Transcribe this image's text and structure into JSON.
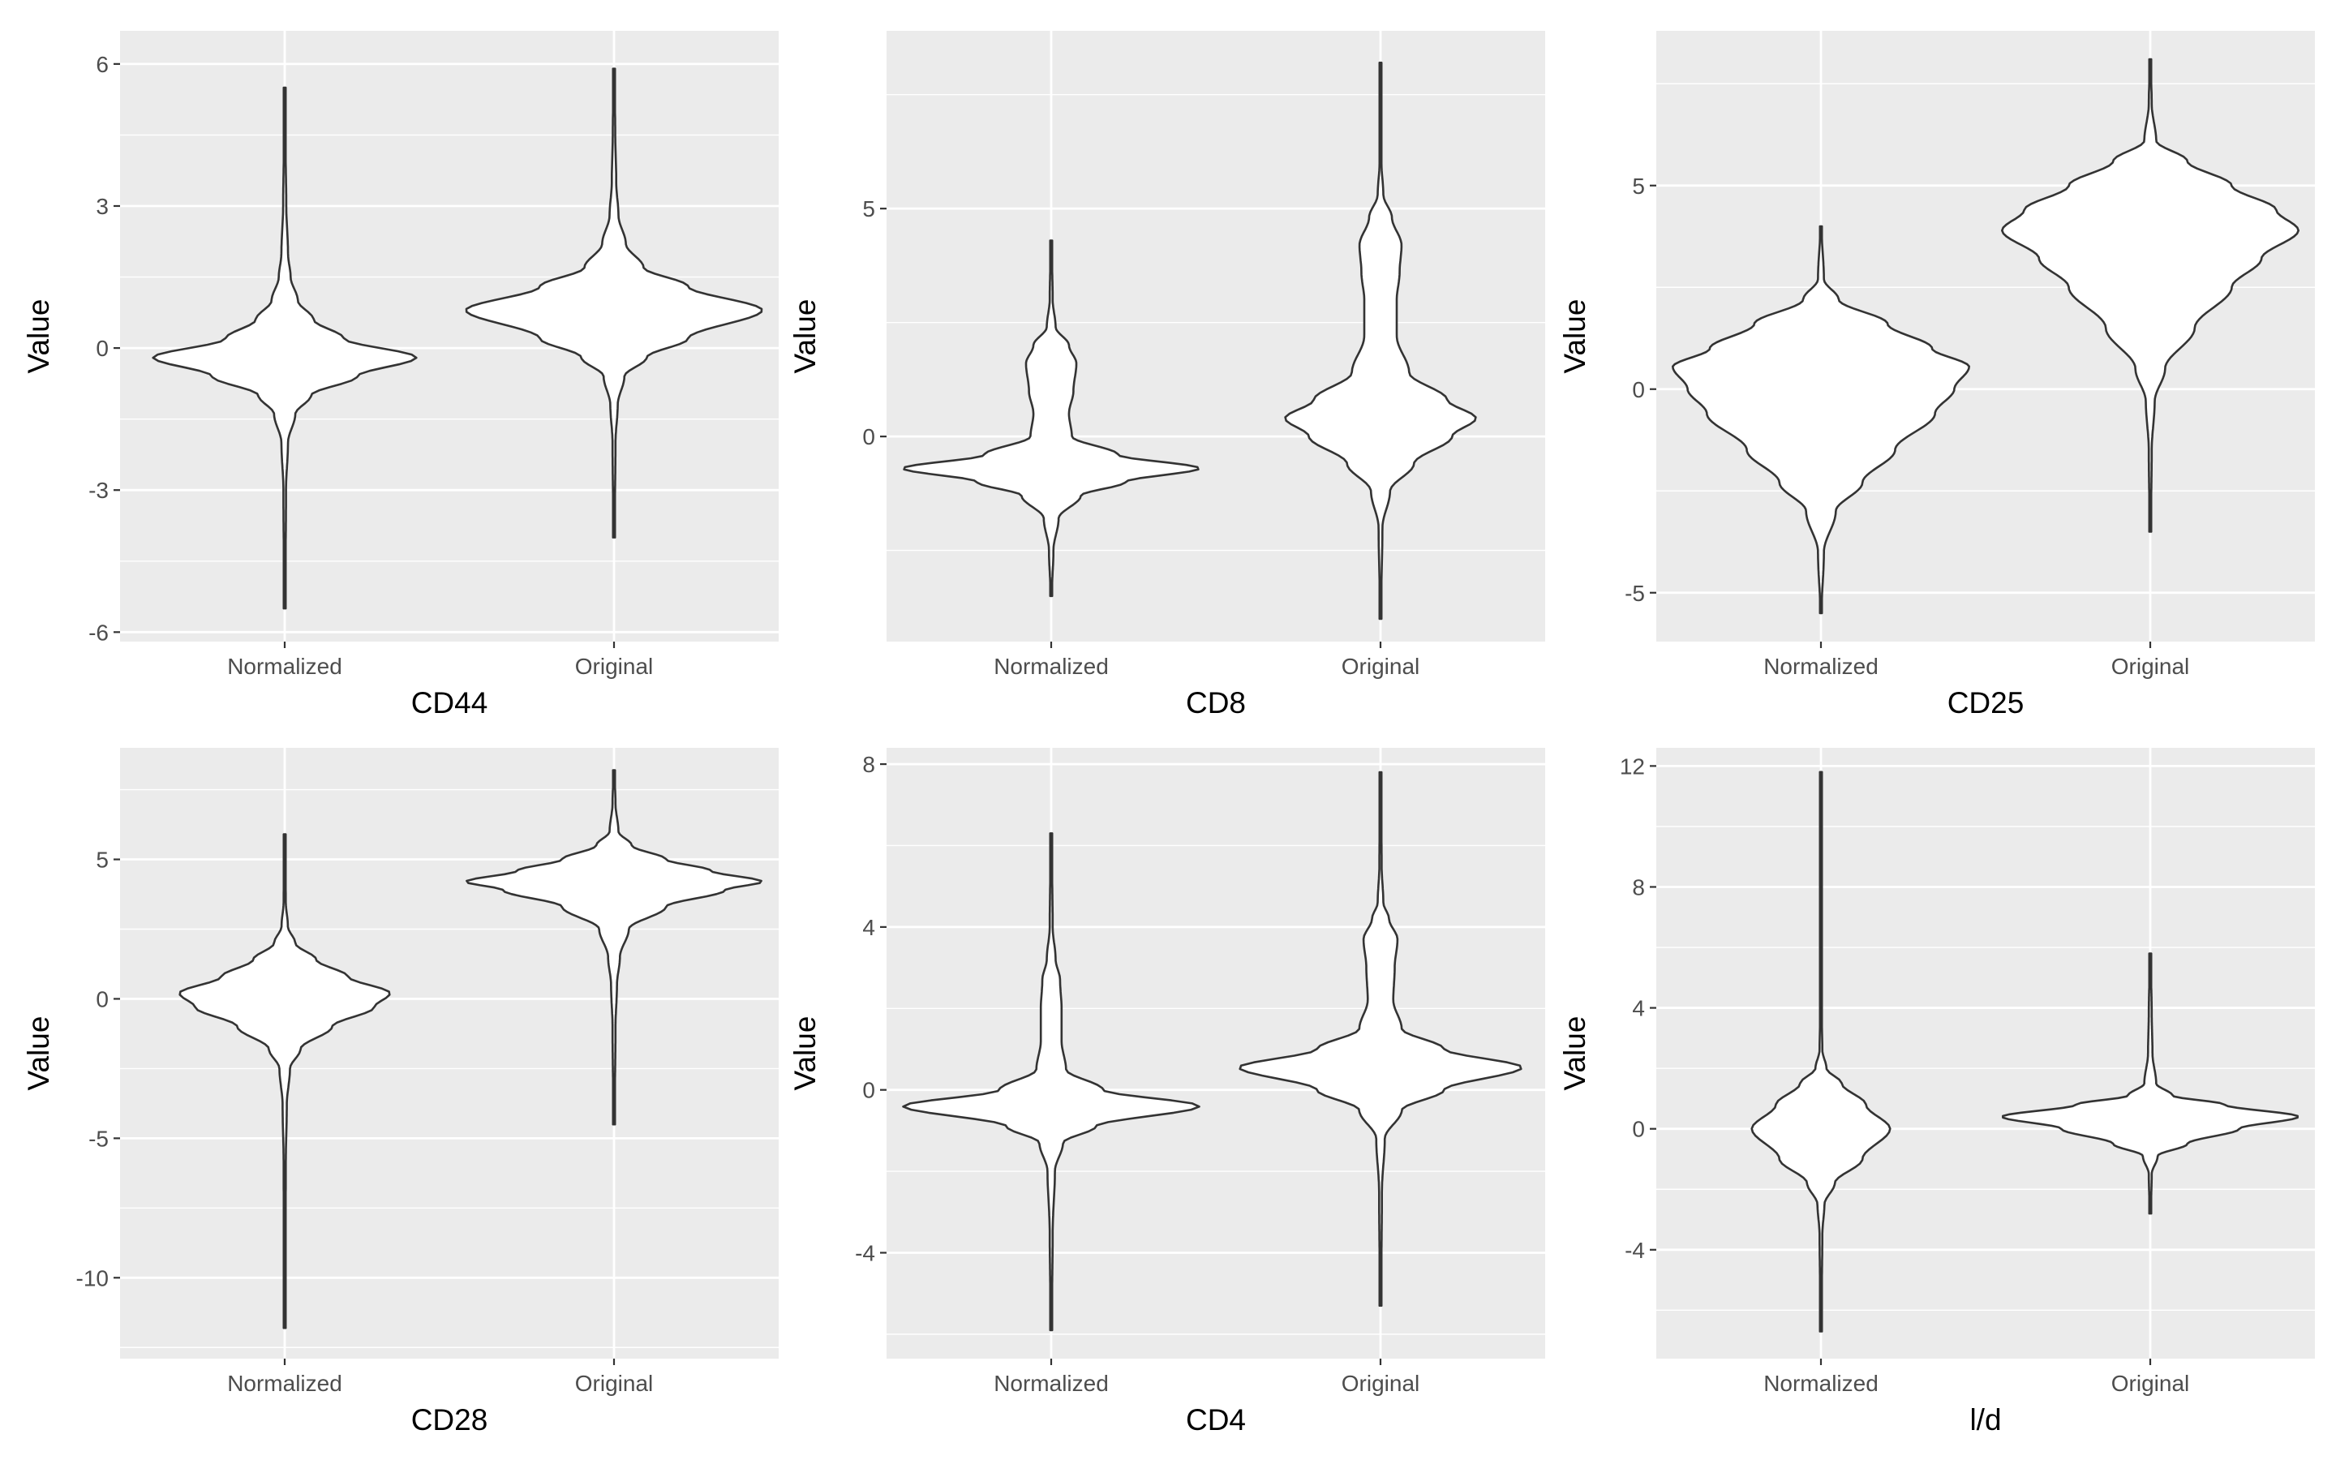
{
  "chart_data": [
    {
      "type": "violin",
      "xlabel": "CD44",
      "ylabel": "Value",
      "categories": [
        "Normalized",
        "Original"
      ],
      "ylim": [
        -6.2,
        6.7
      ],
      "yticks": [
        -6,
        -3,
        0,
        3,
        6
      ],
      "ytick_labels": [
        "-6",
        "-3",
        "0",
        "3",
        "6"
      ],
      "grid": true,
      "violins": [
        {
          "category": "Normalized",
          "min": -5.5,
          "max": 5.5,
          "width": 0.4,
          "density": [
            [
              -5.5,
              0.004
            ],
            [
              -3.0,
              0.01
            ],
            [
              -2.0,
              0.025
            ],
            [
              -1.4,
              0.08
            ],
            [
              -1.0,
              0.2
            ],
            [
              -0.6,
              0.55
            ],
            [
              -0.2,
              1.0
            ],
            [
              0.2,
              0.45
            ],
            [
              0.6,
              0.22
            ],
            [
              1.0,
              0.1
            ],
            [
              1.5,
              0.045
            ],
            [
              2.0,
              0.025
            ],
            [
              3.0,
              0.012
            ],
            [
              4.2,
              0.007
            ],
            [
              5.5,
              0.002
            ]
          ]
        },
        {
          "category": "Original",
          "min": -4.0,
          "max": 5.9,
          "width": 0.45,
          "density": [
            [
              -4.0,
              0.004
            ],
            [
              -2.0,
              0.01
            ],
            [
              -1.2,
              0.025
            ],
            [
              -0.6,
              0.07
            ],
            [
              -0.2,
              0.22
            ],
            [
              0.2,
              0.5
            ],
            [
              0.8,
              1.0
            ],
            [
              1.3,
              0.5
            ],
            [
              1.7,
              0.2
            ],
            [
              2.2,
              0.08
            ],
            [
              2.8,
              0.03
            ],
            [
              3.5,
              0.015
            ],
            [
              4.6,
              0.008
            ],
            [
              5.9,
              0.002
            ]
          ]
        }
      ]
    },
    {
      "type": "violin",
      "xlabel": "CD8",
      "ylabel": "Value",
      "categories": [
        "Normalized",
        "Original"
      ],
      "ylim": [
        -4.5,
        8.9
      ],
      "yticks": [
        0,
        5
      ],
      "ytick_labels": [
        "0",
        "5"
      ],
      "grid": true,
      "violins": [
        {
          "category": "Normalized",
          "min": -3.5,
          "max": 4.3,
          "width": 0.45,
          "density": [
            [
              -3.5,
              0.004
            ],
            [
              -2.5,
              0.015
            ],
            [
              -1.8,
              0.05
            ],
            [
              -1.3,
              0.2
            ],
            [
              -1.0,
              0.5
            ],
            [
              -0.7,
              1.0
            ],
            [
              -0.4,
              0.45
            ],
            [
              0.0,
              0.14
            ],
            [
              0.5,
              0.12
            ],
            [
              1.0,
              0.15
            ],
            [
              1.6,
              0.17
            ],
            [
              2.0,
              0.12
            ],
            [
              2.4,
              0.03
            ],
            [
              3.0,
              0.01
            ],
            [
              4.3,
              0.003
            ]
          ]
        },
        {
          "category": "Original",
          "min": -4.0,
          "max": 8.2,
          "width": 0.29,
          "density": [
            [
              -4.0,
              0.004
            ],
            [
              -2.0,
              0.02
            ],
            [
              -1.2,
              0.1
            ],
            [
              -0.6,
              0.35
            ],
            [
              0.0,
              0.75
            ],
            [
              0.4,
              1.0
            ],
            [
              0.8,
              0.7
            ],
            [
              1.4,
              0.3
            ],
            [
              2.2,
              0.17
            ],
            [
              3.0,
              0.17
            ],
            [
              3.6,
              0.2
            ],
            [
              4.2,
              0.22
            ],
            [
              4.8,
              0.12
            ],
            [
              5.3,
              0.03
            ],
            [
              6.0,
              0.01
            ],
            [
              8.2,
              0.002
            ]
          ]
        }
      ]
    },
    {
      "type": "violin",
      "xlabel": "CD25",
      "ylabel": "Value",
      "categories": [
        "Normalized",
        "Original"
      ],
      "ylim": [
        -6.2,
        8.8
      ],
      "yticks": [
        -5,
        0,
        5
      ],
      "ytick_labels": [
        "-5",
        "0",
        "5"
      ],
      "grid": true,
      "violins": [
        {
          "category": "Normalized",
          "min": -5.5,
          "max": 4.0,
          "width": 0.45,
          "density": [
            [
              -5.5,
              0.004
            ],
            [
              -4.0,
              0.02
            ],
            [
              -3.0,
              0.1
            ],
            [
              -2.3,
              0.28
            ],
            [
              -1.5,
              0.5
            ],
            [
              -0.6,
              0.77
            ],
            [
              0.0,
              0.9
            ],
            [
              0.55,
              1.0
            ],
            [
              1.0,
              0.75
            ],
            [
              1.6,
              0.45
            ],
            [
              2.2,
              0.12
            ],
            [
              2.7,
              0.02
            ],
            [
              4.0,
              0.004
            ]
          ]
        },
        {
          "category": "Original",
          "min": -3.5,
          "max": 8.1,
          "width": 0.45,
          "density": [
            [
              -3.5,
              0.004
            ],
            [
              -1.5,
              0.01
            ],
            [
              -0.3,
              0.03
            ],
            [
              0.5,
              0.1
            ],
            [
              1.5,
              0.3
            ],
            [
              2.5,
              0.55
            ],
            [
              3.2,
              0.75
            ],
            [
              3.9,
              1.0
            ],
            [
              4.4,
              0.85
            ],
            [
              5.0,
              0.55
            ],
            [
              5.6,
              0.25
            ],
            [
              6.1,
              0.04
            ],
            [
              7.0,
              0.01
            ],
            [
              8.1,
              0.002
            ]
          ]
        }
      ]
    },
    {
      "type": "violin",
      "xlabel": "CD28",
      "ylabel": "Value",
      "categories": [
        "Normalized",
        "Original"
      ],
      "ylim": [
        -12.9,
        9.0
      ],
      "yticks": [
        -10,
        -5,
        0,
        5
      ],
      "ytick_labels": [
        "-10",
        "-5",
        "0",
        "5"
      ],
      "grid": true,
      "violins": [
        {
          "category": "Normalized",
          "min": -11.8,
          "max": 5.9,
          "width": 0.32,
          "density": [
            [
              -11.8,
              0.004
            ],
            [
              -6.0,
              0.01
            ],
            [
              -3.8,
              0.02
            ],
            [
              -2.5,
              0.05
            ],
            [
              -1.8,
              0.15
            ],
            [
              -1.0,
              0.45
            ],
            [
              -0.3,
              0.85
            ],
            [
              0.2,
              1.0
            ],
            [
              0.8,
              0.6
            ],
            [
              1.4,
              0.3
            ],
            [
              2.0,
              0.1
            ],
            [
              2.6,
              0.03
            ],
            [
              3.5,
              0.01
            ],
            [
              5.9,
              0.003
            ]
          ]
        },
        {
          "category": "Original",
          "min": -4.5,
          "max": 8.2,
          "width": 0.45,
          "density": [
            [
              -4.5,
              0.004
            ],
            [
              -1.0,
              0.01
            ],
            [
              0.5,
              0.02
            ],
            [
              1.5,
              0.04
            ],
            [
              2.5,
              0.1
            ],
            [
              3.3,
              0.35
            ],
            [
              3.9,
              0.75
            ],
            [
              4.2,
              1.0
            ],
            [
              4.6,
              0.65
            ],
            [
              5.0,
              0.35
            ],
            [
              5.5,
              0.12
            ],
            [
              6.0,
              0.03
            ],
            [
              7.0,
              0.01
            ],
            [
              8.2,
              0.003
            ]
          ]
        }
      ]
    },
    {
      "type": "violin",
      "xlabel": "CD4",
      "ylabel": "Value",
      "categories": [
        "Normalized",
        "Original"
      ],
      "ylim": [
        -6.6,
        8.4
      ],
      "yticks": [
        -4,
        0,
        4,
        8
      ],
      "ytick_labels": [
        "-4",
        "0",
        "4",
        "8"
      ],
      "grid": true,
      "violins": [
        {
          "category": "Normalized",
          "min": -5.9,
          "max": 6.3,
          "width": 0.45,
          "density": [
            [
              -5.9,
              0.004
            ],
            [
              -3.5,
              0.01
            ],
            [
              -2.0,
              0.025
            ],
            [
              -1.3,
              0.08
            ],
            [
              -0.9,
              0.3
            ],
            [
              -0.4,
              1.0
            ],
            [
              0.0,
              0.35
            ],
            [
              0.5,
              0.1
            ],
            [
              1.2,
              0.07
            ],
            [
              2.0,
              0.07
            ],
            [
              2.7,
              0.06
            ],
            [
              3.2,
              0.03
            ],
            [
              4.0,
              0.01
            ],
            [
              6.3,
              0.003
            ]
          ]
        },
        {
          "category": "Original",
          "min": -5.3,
          "max": 7.8,
          "width": 0.43,
          "density": [
            [
              -5.3,
              0.004
            ],
            [
              -2.5,
              0.01
            ],
            [
              -1.2,
              0.03
            ],
            [
              -0.5,
              0.15
            ],
            [
              0.0,
              0.45
            ],
            [
              0.55,
              1.0
            ],
            [
              1.0,
              0.45
            ],
            [
              1.5,
              0.15
            ],
            [
              2.2,
              0.09
            ],
            [
              3.0,
              0.1
            ],
            [
              3.7,
              0.12
            ],
            [
              4.2,
              0.06
            ],
            [
              4.6,
              0.02
            ],
            [
              5.5,
              0.008
            ],
            [
              7.8,
              0.002
            ]
          ]
        }
      ]
    },
    {
      "type": "violin",
      "xlabel": "l/d",
      "ylabel": "Value",
      "categories": [
        "Normalized",
        "Original"
      ],
      "ylim": [
        -7.6,
        12.6
      ],
      "yticks": [
        -4,
        0,
        4,
        8,
        12
      ],
      "ytick_labels": [
        "-4",
        "0",
        "4",
        "8",
        "12"
      ],
      "grid": true,
      "violins": [
        {
          "category": "Normalized",
          "min": -6.7,
          "max": 11.8,
          "width": 0.21,
          "density": [
            [
              -6.7,
              0.004
            ],
            [
              -3.5,
              0.02
            ],
            [
              -2.5,
              0.05
            ],
            [
              -1.8,
              0.2
            ],
            [
              -1.0,
              0.6
            ],
            [
              0.0,
              1.0
            ],
            [
              0.8,
              0.65
            ],
            [
              1.5,
              0.3
            ],
            [
              2.0,
              0.08
            ],
            [
              2.6,
              0.02
            ],
            [
              4.0,
              0.008
            ],
            [
              7.0,
              0.004
            ],
            [
              11.8,
              0.002
            ]
          ]
        },
        {
          "category": "Original",
          "min": -2.8,
          "max": 5.8,
          "width": 0.45,
          "density": [
            [
              -2.8,
              0.004
            ],
            [
              -1.5,
              0.01
            ],
            [
              -0.9,
              0.05
            ],
            [
              -0.5,
              0.25
            ],
            [
              0.0,
              0.6
            ],
            [
              0.4,
              1.0
            ],
            [
              0.8,
              0.5
            ],
            [
              1.1,
              0.15
            ],
            [
              1.5,
              0.04
            ],
            [
              2.5,
              0.015
            ],
            [
              3.8,
              0.01
            ],
            [
              5.8,
              0.002
            ]
          ]
        }
      ]
    }
  ]
}
